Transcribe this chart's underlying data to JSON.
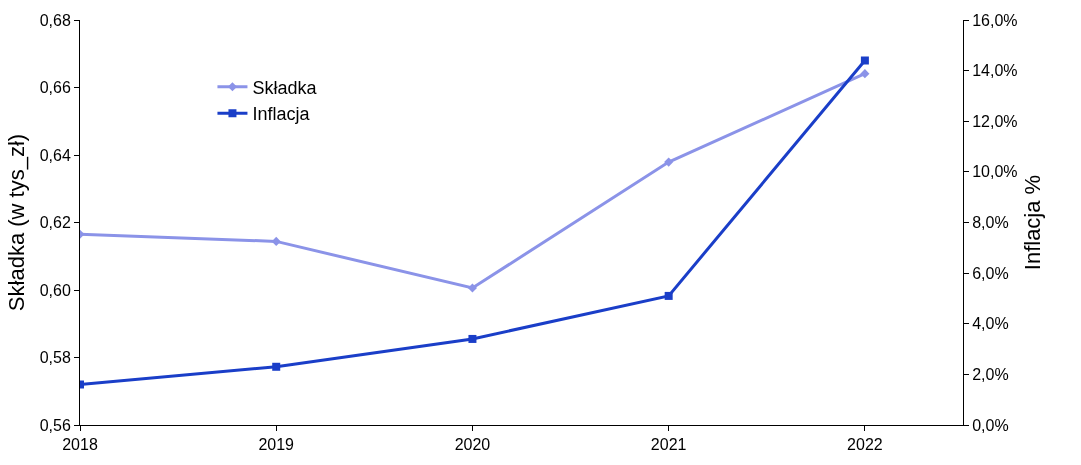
{
  "chart_data": {
    "type": "line",
    "x": [
      2018,
      2019,
      2020,
      2021,
      2022
    ],
    "ylabel": "Składka (w tys_zł)",
    "y2label": "Inflacja %",
    "xlim": [
      2018,
      2022.5
    ],
    "xticks": [
      2018,
      2019,
      2020,
      2021,
      2022
    ],
    "ylim": [
      0.56,
      0.68
    ],
    "yticks": [
      {
        "value": 0.56,
        "label": "0,56"
      },
      {
        "value": 0.58,
        "label": "0,58"
      },
      {
        "value": 0.6,
        "label": "0,60"
      },
      {
        "value": 0.62,
        "label": "0,62"
      },
      {
        "value": 0.64,
        "label": "0,64"
      },
      {
        "value": 0.66,
        "label": "0,66"
      },
      {
        "value": 0.68,
        "label": "0,68"
      }
    ],
    "y2lim": [
      0,
      16
    ],
    "y2ticks": [
      {
        "value": 0,
        "label": "0,0%"
      },
      {
        "value": 2,
        "label": "2,0%"
      },
      {
        "value": 4,
        "label": "4,0%"
      },
      {
        "value": 6,
        "label": "6,0%"
      },
      {
        "value": 8,
        "label": "8,0%"
      },
      {
        "value": 10,
        "label": "10,0%"
      },
      {
        "value": 12,
        "label": "12,0%"
      },
      {
        "value": 14,
        "label": "14,0%"
      },
      {
        "value": 16,
        "label": "16,0%"
      }
    ],
    "series": [
      {
        "name": "Składka",
        "color": "#8b93e8",
        "marker": "diamond",
        "values": [
          0.6165,
          0.6144,
          0.6006,
          0.6379,
          0.6641
        ]
      },
      {
        "name": "Inflacja",
        "color": "#1a3ec8",
        "marker": "square",
        "axis": "y2",
        "values": [
          1.6,
          2.3,
          3.4,
          5.1,
          14.4
        ]
      }
    ],
    "legend": "top left",
    "line_style": "solid"
  }
}
